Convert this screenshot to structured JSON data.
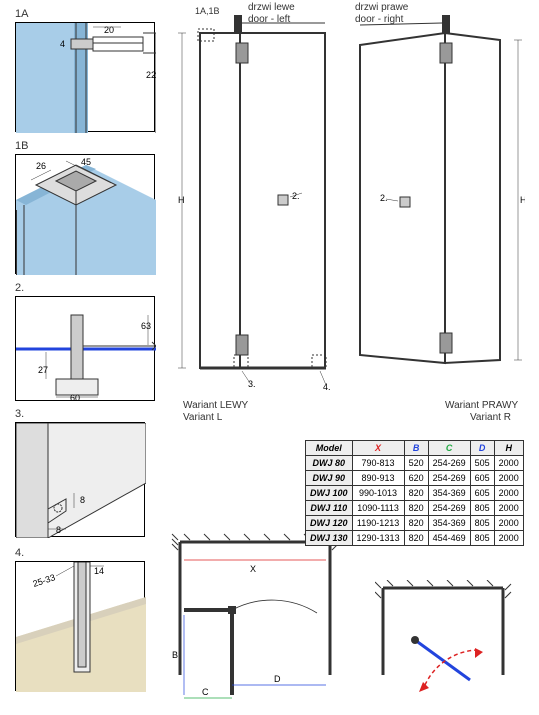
{
  "details": {
    "d1a": {
      "label": "1A",
      "dims": {
        "w": "20",
        "h": "4",
        "r": "22"
      }
    },
    "d1b": {
      "label": "1B",
      "dims": {
        "a": "26",
        "b": "45"
      }
    },
    "d2": {
      "label": "2.",
      "dims": {
        "w": "60",
        "t": "27",
        "r": "63"
      }
    },
    "d3": {
      "label": "3.",
      "dims": {
        "a": "8",
        "b": "8"
      }
    },
    "d4": {
      "label": "4.",
      "dims": {
        "a": "25-33",
        "b": "14"
      }
    }
  },
  "elevations": {
    "refs": "1A,1B",
    "left_title1": "drzwi lewe",
    "left_title2": "door - left",
    "right_title1": "drzwi prawe",
    "right_title2": "door - right",
    "left_caption1": "Wariant LEWY",
    "left_caption2": "Variant L",
    "right_caption1": "Wariant PRAWY",
    "right_caption2": "Variant R",
    "H": "H",
    "callout2": "2.",
    "callout3": "3.",
    "callout4": "4."
  },
  "plan": {
    "X": "X",
    "B": "B",
    "C": "C",
    "D": "D"
  },
  "table": {
    "headers": [
      "Model",
      "X",
      "B",
      "C",
      "D",
      "H"
    ],
    "rows": [
      [
        "DWJ 80",
        "790-813",
        "520",
        "254-269",
        "505",
        "2000"
      ],
      [
        "DWJ 90",
        "890-913",
        "620",
        "254-269",
        "605",
        "2000"
      ],
      [
        "DWJ 100",
        "990-1013",
        "820",
        "354-369",
        "605",
        "2000"
      ],
      [
        "DWJ 110",
        "1090-1113",
        "820",
        "254-269",
        "805",
        "2000"
      ],
      [
        "DWJ 120",
        "1190-1213",
        "820",
        "354-369",
        "805",
        "2000"
      ],
      [
        "DWJ 130",
        "1290-1313",
        "820",
        "454-469",
        "805",
        "2000"
      ]
    ]
  },
  "colors": {
    "glass1": "#a8cde8",
    "glass2": "#87b5d6",
    "metal": "#bbb",
    "metal_dark": "#999",
    "line": "#333",
    "red": "#d22",
    "blue": "#24d",
    "green": "#2a4",
    "floor": "#e8dfc0",
    "hatch": "#d8d0bb"
  }
}
